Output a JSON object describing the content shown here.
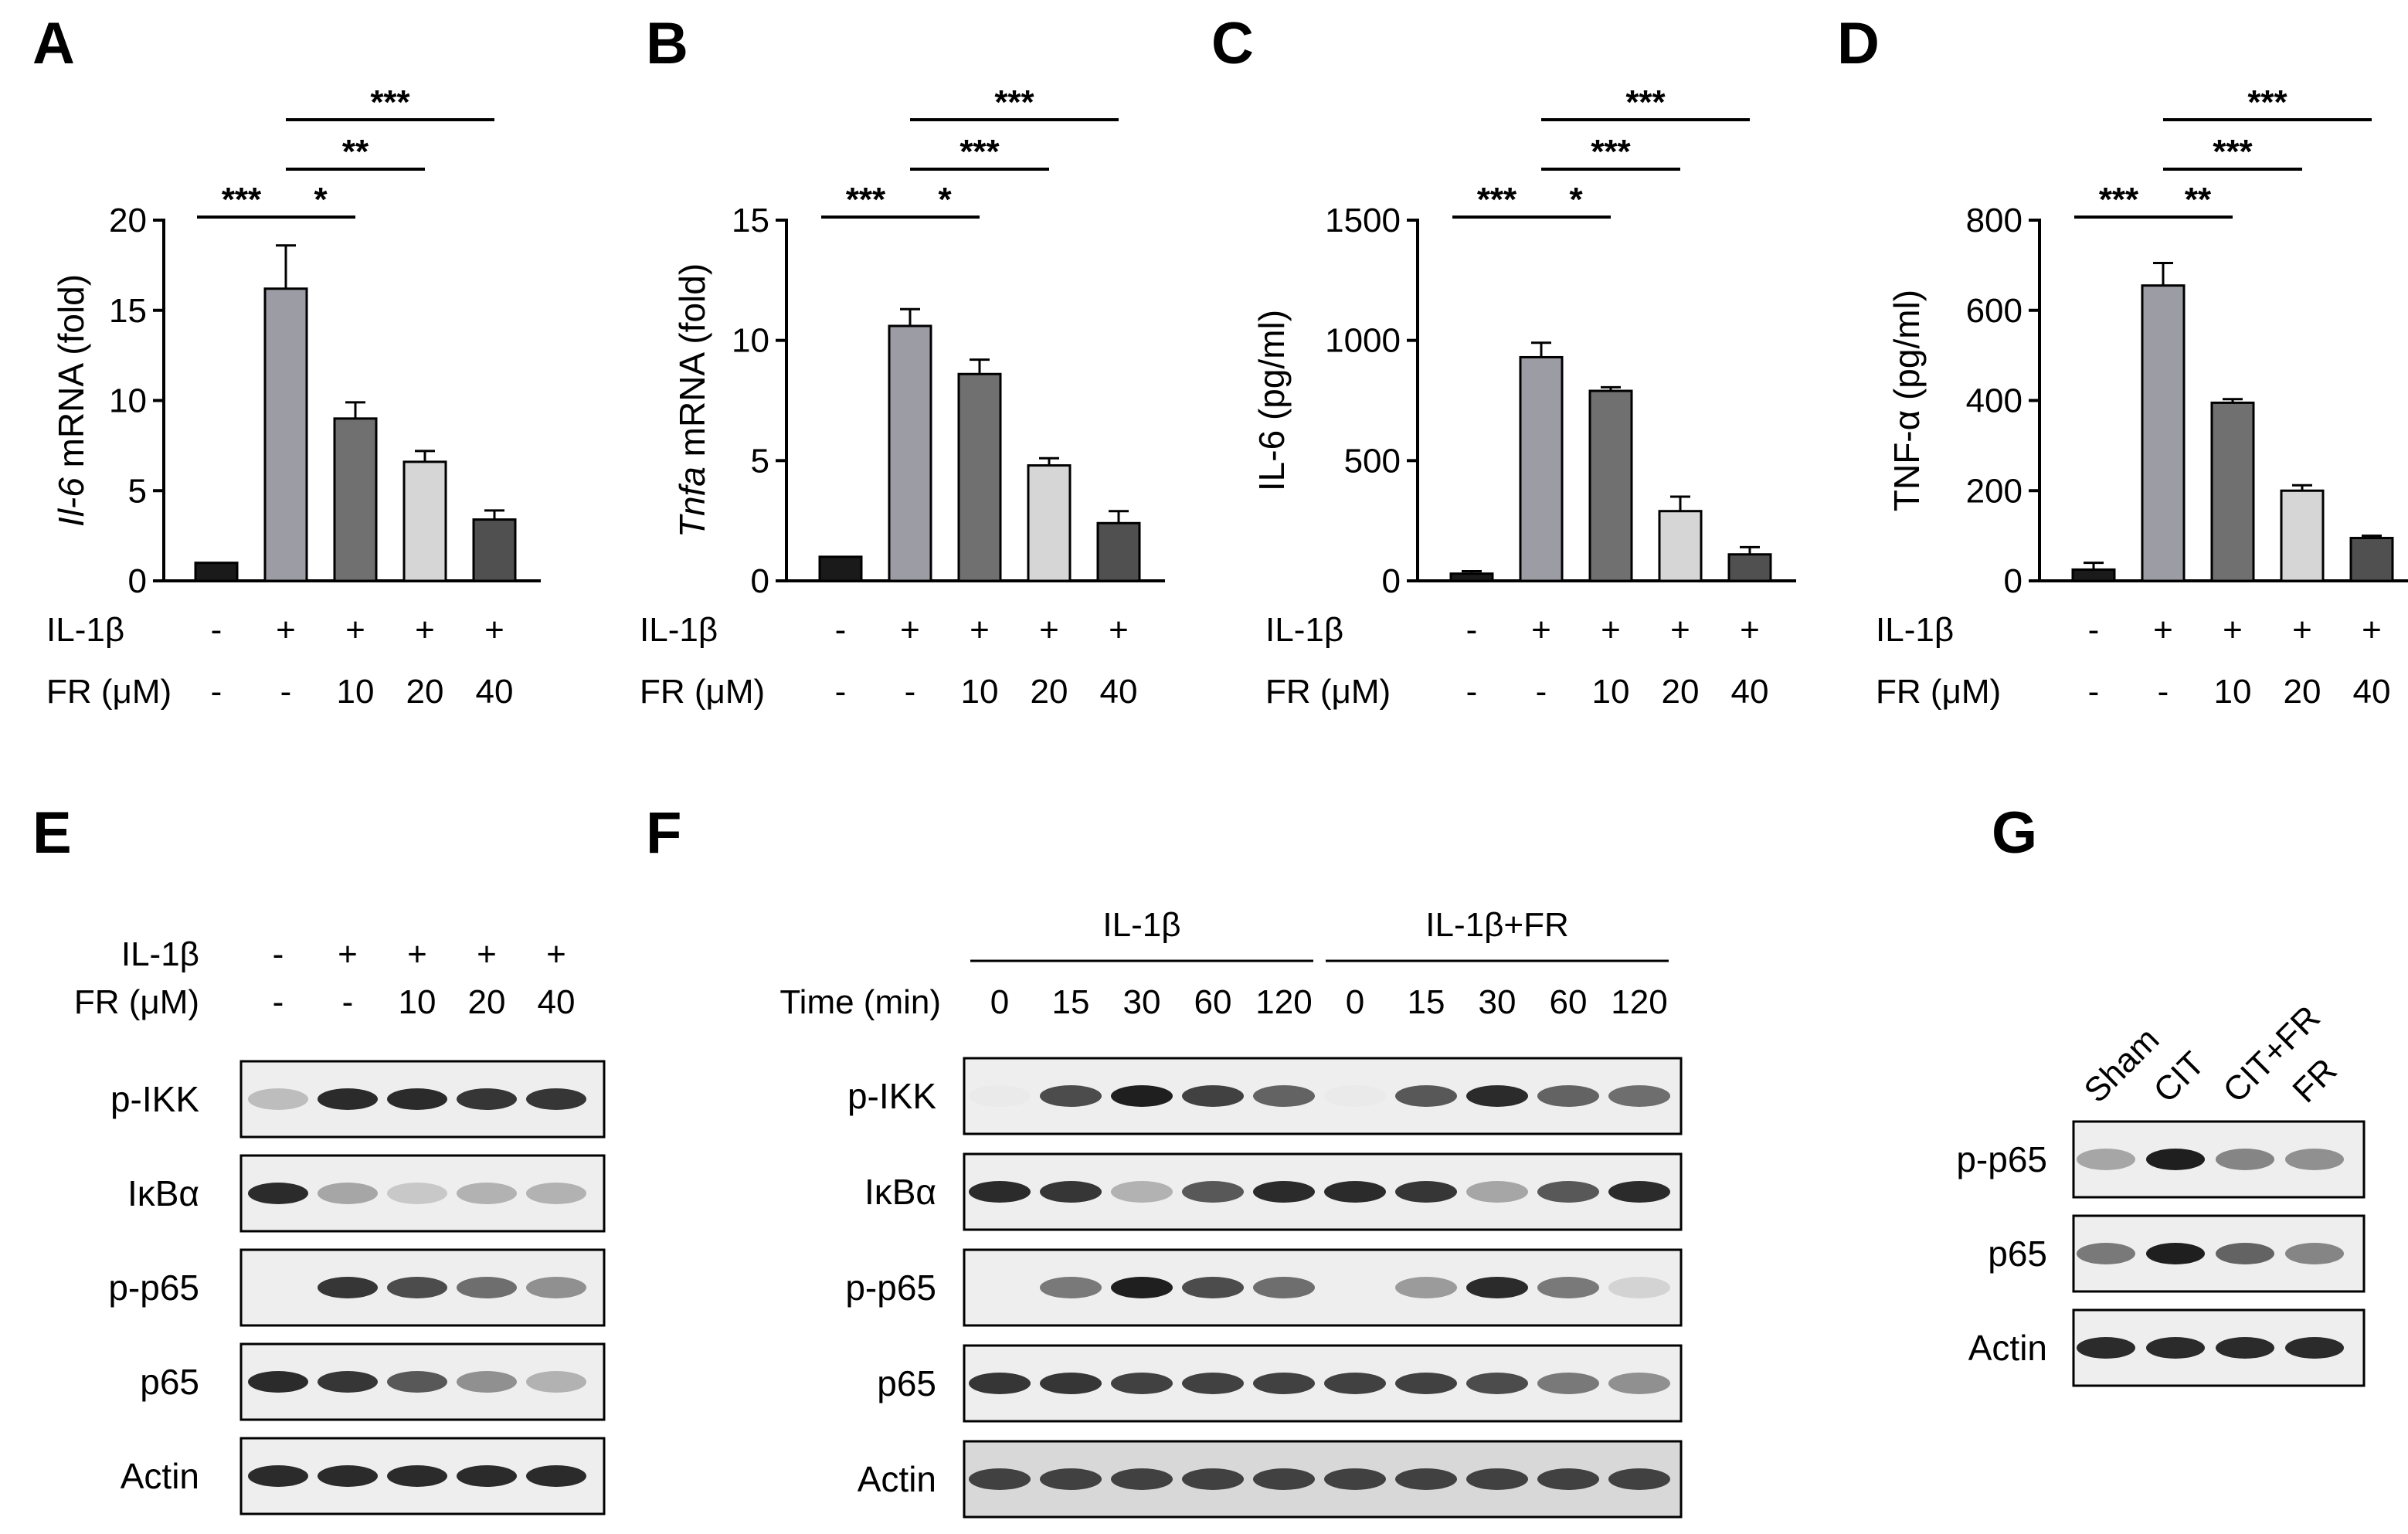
{
  "chart_data": [
    {
      "type": "bar",
      "panel": "A",
      "ylabel_italic": "Il-6",
      "ylabel_rest": " mRNA (fold)",
      "ylim": [
        0,
        20
      ],
      "yticks": [
        "0",
        "5",
        "10",
        "15",
        "20"
      ],
      "values": [
        1.0,
        16.2,
        9.0,
        6.6,
        3.4
      ],
      "errors": [
        0.0,
        2.4,
        0.9,
        0.6,
        0.5
      ],
      "colors": [
        "#1a1a1a",
        "#9c9ca4",
        "#707070",
        "#d6d6d6",
        "#505050"
      ],
      "conditions": [
        {
          "label": "IL-1β",
          "values": [
            "-",
            "+",
            "+",
            "+",
            "+"
          ]
        },
        {
          "label": "FR (μM)",
          "values": [
            "-",
            "-",
            "10",
            "20",
            "40"
          ]
        }
      ],
      "significance": [
        {
          "from": 0,
          "to": 1,
          "label": "***"
        },
        {
          "from": 1,
          "to": 2,
          "label": "*"
        },
        {
          "from": 1,
          "to": 3,
          "label": "**"
        },
        {
          "from": 1,
          "to": 4,
          "label": "***"
        }
      ]
    },
    {
      "type": "bar",
      "panel": "B",
      "ylabel_italic": "Tnfa",
      "ylabel_rest": " mRNA (fold)",
      "ylim": [
        0,
        15
      ],
      "yticks": [
        "0",
        "5",
        "10",
        "15"
      ],
      "values": [
        1.0,
        10.6,
        8.6,
        4.8,
        2.4
      ],
      "errors": [
        0.0,
        0.7,
        0.6,
        0.3,
        0.5
      ],
      "colors": [
        "#1a1a1a",
        "#9c9ca4",
        "#707070",
        "#d6d6d6",
        "#505050"
      ],
      "conditions": [
        {
          "label": "IL-1β",
          "values": [
            "-",
            "+",
            "+",
            "+",
            "+"
          ]
        },
        {
          "label": "FR (μM)",
          "values": [
            "-",
            "-",
            "10",
            "20",
            "40"
          ]
        }
      ],
      "significance": [
        {
          "from": 0,
          "to": 1,
          "label": "***"
        },
        {
          "from": 1,
          "to": 2,
          "label": "*"
        },
        {
          "from": 1,
          "to": 3,
          "label": "***"
        },
        {
          "from": 1,
          "to": 4,
          "label": "***"
        }
      ]
    },
    {
      "type": "bar",
      "panel": "C",
      "ylabel_italic": "",
      "ylabel_rest": "IL-6 (pg/ml)",
      "ylim": [
        0,
        1500
      ],
      "yticks": [
        "0",
        "500",
        "1000",
        "1500"
      ],
      "values": [
        30,
        930,
        790,
        290,
        110
      ],
      "errors": [
        10,
        60,
        15,
        60,
        30
      ],
      "colors": [
        "#1a1a1a",
        "#9c9ca4",
        "#707070",
        "#d6d6d6",
        "#505050"
      ],
      "conditions": [
        {
          "label": "IL-1β",
          "values": [
            "-",
            "+",
            "+",
            "+",
            "+"
          ]
        },
        {
          "label": "FR (μM)",
          "values": [
            "-",
            "-",
            "10",
            "20",
            "40"
          ]
        }
      ],
      "significance": [
        {
          "from": 0,
          "to": 1,
          "label": "***"
        },
        {
          "from": 1,
          "to": 2,
          "label": "*"
        },
        {
          "from": 1,
          "to": 3,
          "label": "***"
        },
        {
          "from": 1,
          "to": 4,
          "label": "***"
        }
      ]
    },
    {
      "type": "bar",
      "panel": "D",
      "ylabel_italic": "",
      "ylabel_rest": "TNF-α (pg/ml)",
      "ylim": [
        0,
        800
      ],
      "yticks": [
        "0",
        "200",
        "400",
        "600",
        "800"
      ],
      "values": [
        25,
        655,
        395,
        200,
        95
      ],
      "errors": [
        15,
        50,
        8,
        12,
        5
      ],
      "colors": [
        "#1a1a1a",
        "#9c9ca4",
        "#707070",
        "#d6d6d6",
        "#505050"
      ],
      "conditions": [
        {
          "label": "IL-1β",
          "values": [
            "-",
            "+",
            "+",
            "+",
            "+"
          ]
        },
        {
          "label": "FR (μM)",
          "values": [
            "-",
            "-",
            "10",
            "20",
            "40"
          ]
        }
      ],
      "significance": [
        {
          "from": 0,
          "to": 1,
          "label": "***"
        },
        {
          "from": 1,
          "to": 2,
          "label": "**"
        },
        {
          "from": 1,
          "to": 3,
          "label": "***"
        },
        {
          "from": 1,
          "to": 4,
          "label": "***"
        }
      ]
    }
  ],
  "blots": [
    {
      "panel": "E",
      "conditions": [
        {
          "label": "IL-1β",
          "values": [
            "-",
            "+",
            "+",
            "+",
            "+"
          ]
        },
        {
          "label": "FR (μM)",
          "values": [
            "-",
            "-",
            "10",
            "20",
            "40"
          ]
        }
      ],
      "rows": [
        {
          "label": "p-IKK",
          "intensity": [
            0.25,
            0.9,
            0.9,
            0.85,
            0.85
          ]
        },
        {
          "label": "IκBα",
          "intensity": [
            0.9,
            0.35,
            0.2,
            0.3,
            0.3
          ]
        },
        {
          "label": "p-p65",
          "intensity": [
            0.0,
            0.85,
            0.75,
            0.6,
            0.45
          ]
        },
        {
          "label": "p65",
          "intensity": [
            0.9,
            0.85,
            0.7,
            0.45,
            0.3
          ]
        },
        {
          "label": "Actin",
          "intensity": [
            0.9,
            0.9,
            0.9,
            0.9,
            0.9
          ]
        }
      ]
    },
    {
      "panel": "F",
      "groups": [
        "IL-1β",
        "IL-1β+FR"
      ],
      "time_label": "Time (min)",
      "times": [
        "0",
        "15",
        "30",
        "60",
        "120",
        "0",
        "15",
        "30",
        "60",
        "120"
      ],
      "rows": [
        {
          "label": "p-IKK",
          "intensity": [
            0.05,
            0.75,
            0.95,
            0.8,
            0.65,
            0.05,
            0.7,
            0.9,
            0.65,
            0.6
          ]
        },
        {
          "label": "IκBα",
          "intensity": [
            0.9,
            0.85,
            0.3,
            0.7,
            0.9,
            0.9,
            0.85,
            0.35,
            0.7,
            0.9
          ]
        },
        {
          "label": "p-p65",
          "intensity": [
            0.0,
            0.55,
            0.95,
            0.75,
            0.6,
            0.0,
            0.4,
            0.9,
            0.55,
            0.15
          ]
        },
        {
          "label": "p65",
          "intensity": [
            0.85,
            0.85,
            0.8,
            0.8,
            0.8,
            0.8,
            0.8,
            0.75,
            0.55,
            0.45
          ]
        },
        {
          "label": "Actin",
          "intensity": [
            0.8,
            0.8,
            0.8,
            0.8,
            0.8,
            0.8,
            0.8,
            0.8,
            0.8,
            0.8
          ]
        }
      ]
    },
    {
      "panel": "G",
      "lanes": [
        "Sham",
        "CIT",
        "CIT+FR",
        "FR"
      ],
      "rows": [
        {
          "label": "p-p65",
          "intensity": [
            0.35,
            0.95,
            0.5,
            0.45
          ]
        },
        {
          "label": "p65",
          "intensity": [
            0.55,
            0.95,
            0.65,
            0.5
          ]
        },
        {
          "label": "Actin",
          "intensity": [
            0.9,
            0.9,
            0.9,
            0.9
          ]
        }
      ]
    }
  ]
}
